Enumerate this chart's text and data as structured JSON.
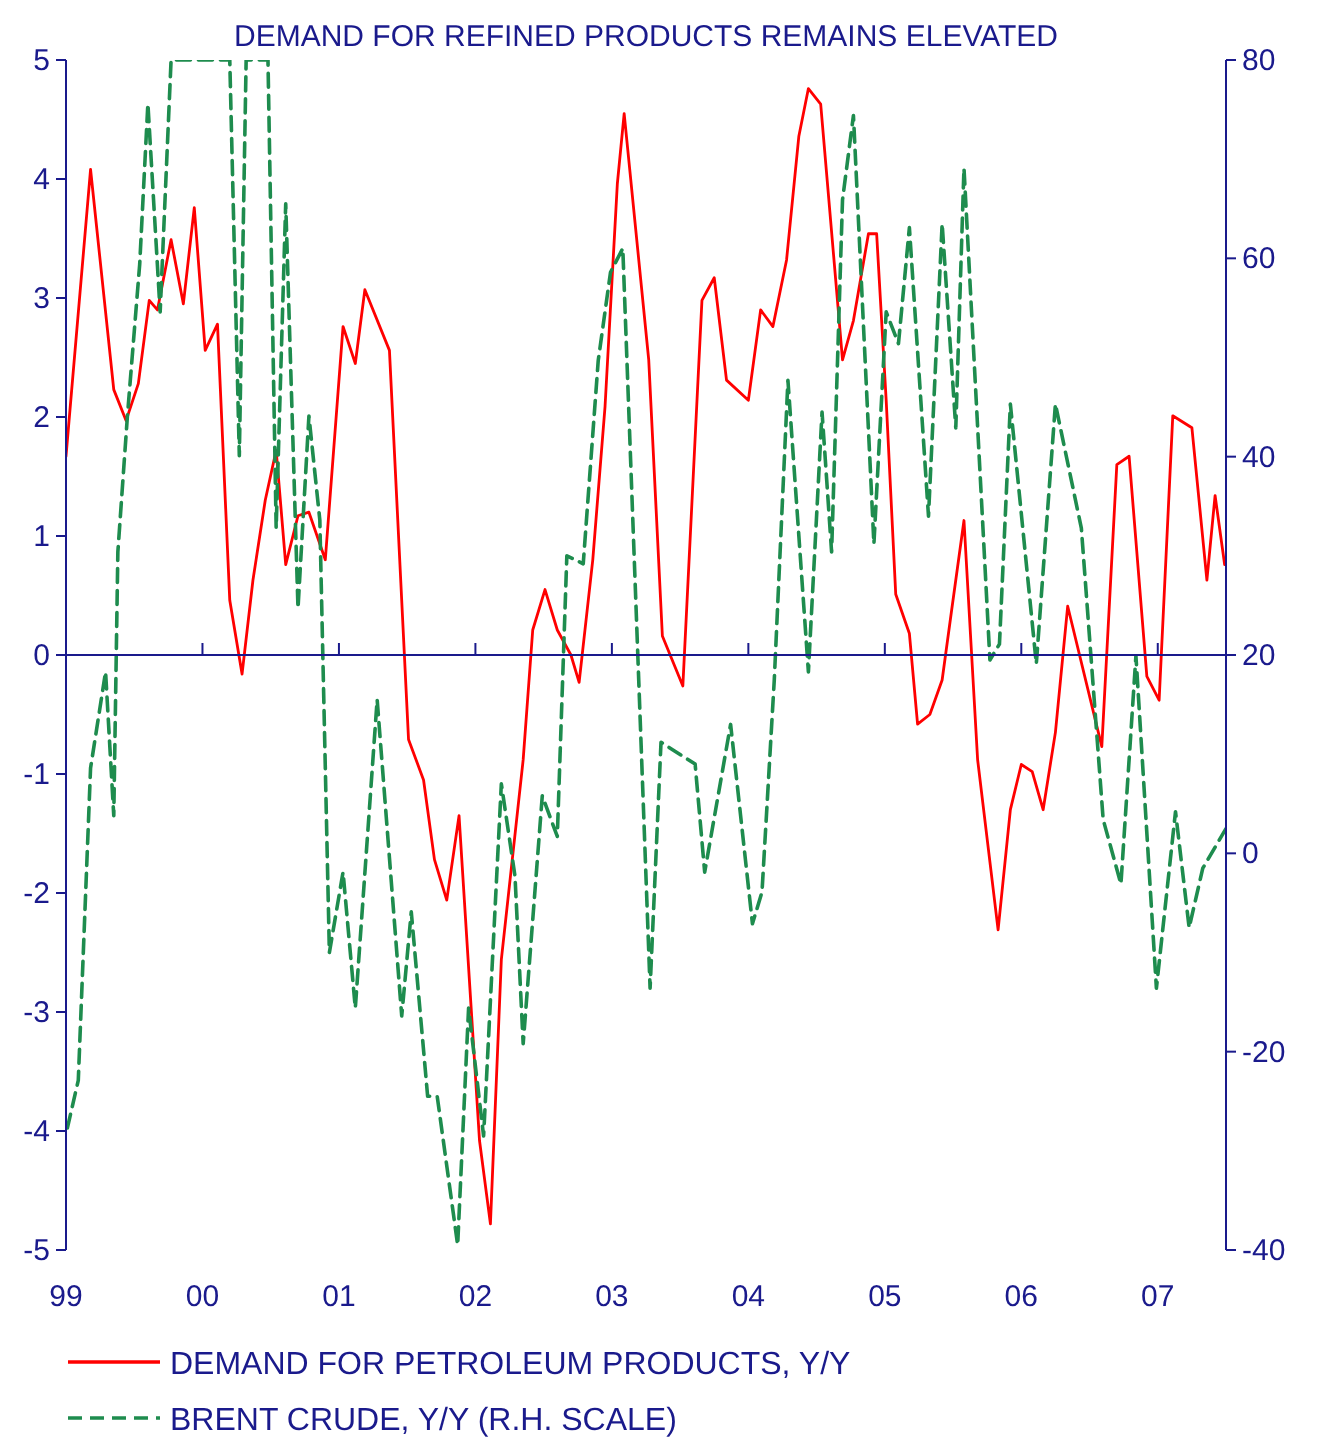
{
  "chart_data": {
    "type": "line",
    "title": "DEMAND FOR REFINED PRODUCTS REMAINS ELEVATED",
    "xlim": [
      1999,
      2007.5
    ],
    "xticks": [
      {
        "value": 1999,
        "label": "99"
      },
      {
        "value": 2000,
        "label": "00"
      },
      {
        "value": 2001,
        "label": "01"
      },
      {
        "value": 2002,
        "label": "02"
      },
      {
        "value": 2003,
        "label": "03"
      },
      {
        "value": 2004,
        "label": "04"
      },
      {
        "value": 2005,
        "label": "05"
      },
      {
        "value": 2006,
        "label": "06"
      },
      {
        "value": 2007,
        "label": "07"
      }
    ],
    "ylim": [
      -5,
      5
    ],
    "yticks": [
      -5,
      -4,
      -3,
      -2,
      -1,
      0,
      1,
      2,
      3,
      4,
      5
    ],
    "y2lim": [
      -40,
      80
    ],
    "y2ticks": [
      -40,
      -20,
      0,
      20,
      40,
      60,
      80
    ],
    "grid": false,
    "legend": "bottom left",
    "ref_lines": [
      {
        "axis": "y",
        "value": 0,
        "color": "#1a1a8c"
      }
    ],
    "series": [
      {
        "name": "DEMAND FOR PETROLEUM PRODUCTS, Y/Y",
        "color": "#ff0000",
        "line_style": "solid",
        "x": [
          1999.0,
          1999.18,
          1999.35,
          1999.44,
          1999.53,
          1999.61,
          1999.67,
          1999.77,
          1999.86,
          1999.94,
          2000.02,
          2000.11,
          2000.2,
          2000.29,
          2000.37,
          2000.46,
          2000.54,
          2000.61,
          2000.7,
          2000.78,
          2000.9,
          2001.03,
          2001.12,
          2001.19,
          2001.37,
          2001.51,
          2001.62,
          2001.7,
          2001.79,
          2001.88,
          2002.03,
          2002.11,
          2002.19,
          2002.35,
          2002.42,
          2002.51,
          2002.6,
          2002.7,
          2002.76,
          2002.86,
          2002.95,
          2003.04,
          2003.09,
          2003.27,
          2003.37,
          2003.52,
          2003.66,
          2003.75,
          2003.84,
          2004.0,
          2004.09,
          2004.18,
          2004.28,
          2004.37,
          2004.44,
          2004.53,
          2004.69,
          2004.77,
          2004.88,
          2004.94,
          2005.01,
          2005.08,
          2005.18,
          2005.24,
          2005.33,
          2005.42,
          2005.49,
          2005.58,
          2005.68,
          2005.83,
          2005.92,
          2006.0,
          2006.08,
          2006.16,
          2006.25,
          2006.34,
          2006.59,
          2006.7,
          2006.79,
          2006.92,
          2007.01,
          2007.11,
          2007.25,
          2007.36,
          2007.42,
          2007.49
        ],
        "values": [
          1.67,
          4.08,
          2.23,
          1.97,
          2.28,
          2.98,
          2.9,
          3.49,
          2.95,
          3.76,
          2.56,
          2.78,
          0.46,
          -0.16,
          0.63,
          1.3,
          1.72,
          0.76,
          1.17,
          1.2,
          0.8,
          2.76,
          2.45,
          3.07,
          2.56,
          -0.71,
          -1.05,
          -1.72,
          -2.06,
          -1.35,
          -4.08,
          -4.78,
          -2.56,
          -0.88,
          0.21,
          0.55,
          0.21,
          0,
          -0.23,
          0.8,
          2.09,
          3.96,
          4.55,
          2.48,
          0.16,
          -0.26,
          2.98,
          3.17,
          2.31,
          2.14,
          2.9,
          2.76,
          3.32,
          4.36,
          4.76,
          4.63,
          2.48,
          2.81,
          3.54,
          3.54,
          2.14,
          0.51,
          0.18,
          -0.58,
          -0.5,
          -0.21,
          0.38,
          1.13,
          -0.88,
          -2.31,
          -1.3,
          -0.92,
          -0.98,
          -1.3,
          -0.65,
          0.41,
          -0.77,
          1.6,
          1.67,
          -0.18,
          -0.38,
          2.01,
          1.91,
          0.63,
          1.34,
          0.76
        ]
      },
      {
        "name": "BRENT CRUDE, Y/Y (R.H. SCALE)",
        "color": "#1e8c4e",
        "line_style": "dashed",
        "axis": "y2",
        "x": [
          1999.01,
          1999.09,
          1999.18,
          1999.29,
          1999.35,
          1999.38,
          1999.45,
          1999.54,
          1999.6,
          1999.69,
          1999.77,
          2000.2,
          2000.27,
          2000.32,
          2000.48,
          2000.54,
          2000.61,
          2000.7,
          2000.78,
          2000.86,
          2000.93,
          2001.03,
          2001.12,
          2001.28,
          2001.46,
          2001.53,
          2001.65,
          2001.72,
          2001.87,
          2001.95,
          2002.06,
          2002.19,
          2002.29,
          2002.35,
          2002.49,
          2002.6,
          2002.67,
          2002.79,
          2002.9,
          2002.99,
          2003.08,
          2003.28,
          2003.36,
          2003.61,
          2003.68,
          2003.87,
          2004.03,
          2004.1,
          2004.19,
          2004.29,
          2004.44,
          2004.54,
          2004.61,
          2004.69,
          2004.77,
          2004.92,
          2005.01,
          2005.1,
          2005.18,
          2005.32,
          2005.42,
          2005.52,
          2005.58,
          2005.77,
          2005.84,
          2005.92,
          2006.11,
          2006.25,
          2006.44,
          2006.6,
          2006.73,
          2006.84,
          2006.99,
          2007.13,
          2007.23,
          2007.33,
          2007.5
        ],
        "values": [
          -27.7,
          -22.9,
          8.6,
          18.3,
          3.8,
          30.4,
          44.1,
          59.4,
          75.6,
          54.6,
          80,
          80,
          40.1,
          80,
          80,
          32.8,
          65.5,
          24.7,
          44.1,
          33.6,
          -10.0,
          -1.9,
          -15.6,
          15.5,
          -16.4,
          -5.9,
          -24.5,
          -24.5,
          -39.5,
          -15.6,
          -28.5,
          7.0,
          -2.3,
          -19.2,
          5.8,
          1.7,
          30.0,
          29.2,
          49.7,
          58.6,
          61.0,
          -13.6,
          11.2,
          9.0,
          -1.9,
          13.0,
          -7.1,
          -3.9,
          17.5,
          47.7,
          18.3,
          44.5,
          30.4,
          65.9,
          74.4,
          31.2,
          54.6,
          51.4,
          63.1,
          34.0,
          63.5,
          42.9,
          69.1,
          19.5,
          21.1,
          45.3,
          19.1,
          45.3,
          32.8,
          3.4,
          -3.1,
          19.9,
          -13.6,
          4.2,
          -7.5,
          -1.5,
          2.5
        ]
      }
    ]
  }
}
